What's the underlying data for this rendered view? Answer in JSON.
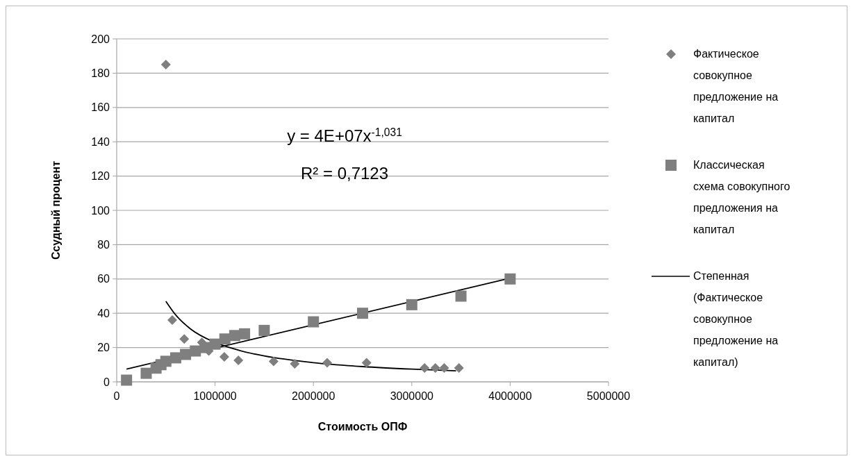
{
  "chart_data": {
    "type": "scatter",
    "xlabel": "Стоимость ОПФ",
    "ylabel": "Ссудный процент",
    "xlim": [
      0,
      5000000
    ],
    "xticks": [
      0,
      1000000,
      2000000,
      3000000,
      4000000,
      5000000
    ],
    "ylim": [
      0,
      200
    ],
    "yticks": [
      0,
      20,
      40,
      60,
      80,
      100,
      120,
      140,
      160,
      180,
      200
    ],
    "grid": "y",
    "legend": "right",
    "annotations": [
      "y = 4E+07x$^{-1,031}$",
      "R² = 0,7123"
    ],
    "series": [
      {
        "name": "Фактическое совокупное предложение на капитал",
        "marker": "diamond",
        "color": "#7f7f7f",
        "x": [
          500000,
          565000,
          687000,
          866000,
          936000,
          1094000,
          1237000,
          1595000,
          1810000,
          2140000,
          2540000,
          3130000,
          3240000,
          3330000,
          3480000
        ],
        "values": [
          185,
          36,
          25,
          23,
          18,
          14.6,
          12.6,
          11.9,
          10.5,
          11.1,
          11.1,
          8.1,
          8.1,
          8.1,
          8.1
        ]
      },
      {
        "name": "Классическая схема совокупного предложения на капитал",
        "marker": "square",
        "color": "#7f7f7f",
        "x": [
          100000,
          300000,
          400000,
          450000,
          500000,
          600000,
          700000,
          800000,
          900000,
          1000000,
          1100000,
          1200000,
          1300000,
          1500000,
          2000000,
          2500000,
          3000000,
          3500000,
          4000000
        ],
        "values": [
          1,
          5,
          8,
          10,
          12,
          14,
          16,
          18,
          20,
          22,
          25,
          27,
          28,
          30,
          35,
          40,
          45,
          50,
          60
        ]
      },
      {
        "type": "line",
        "marker": "none",
        "color": "#000000",
        "x": [
          100000,
          4000000
        ],
        "values": [
          7.4,
          60.5
        ]
      },
      {
        "name": "Степенная (Фактическое совокупное предложение на капитал)",
        "type": "line",
        "marker": "none",
        "color": "#000000",
        "x": [
          500000,
          600000,
          750000,
          1000000,
          1250000,
          1500000,
          2000000,
          2500000,
          3000000,
          3450000
        ],
        "values": [
          47,
          39,
          30.9,
          23,
          18.3,
          15.1,
          11.2,
          8.9,
          7.4,
          6.4
        ]
      }
    ]
  }
}
